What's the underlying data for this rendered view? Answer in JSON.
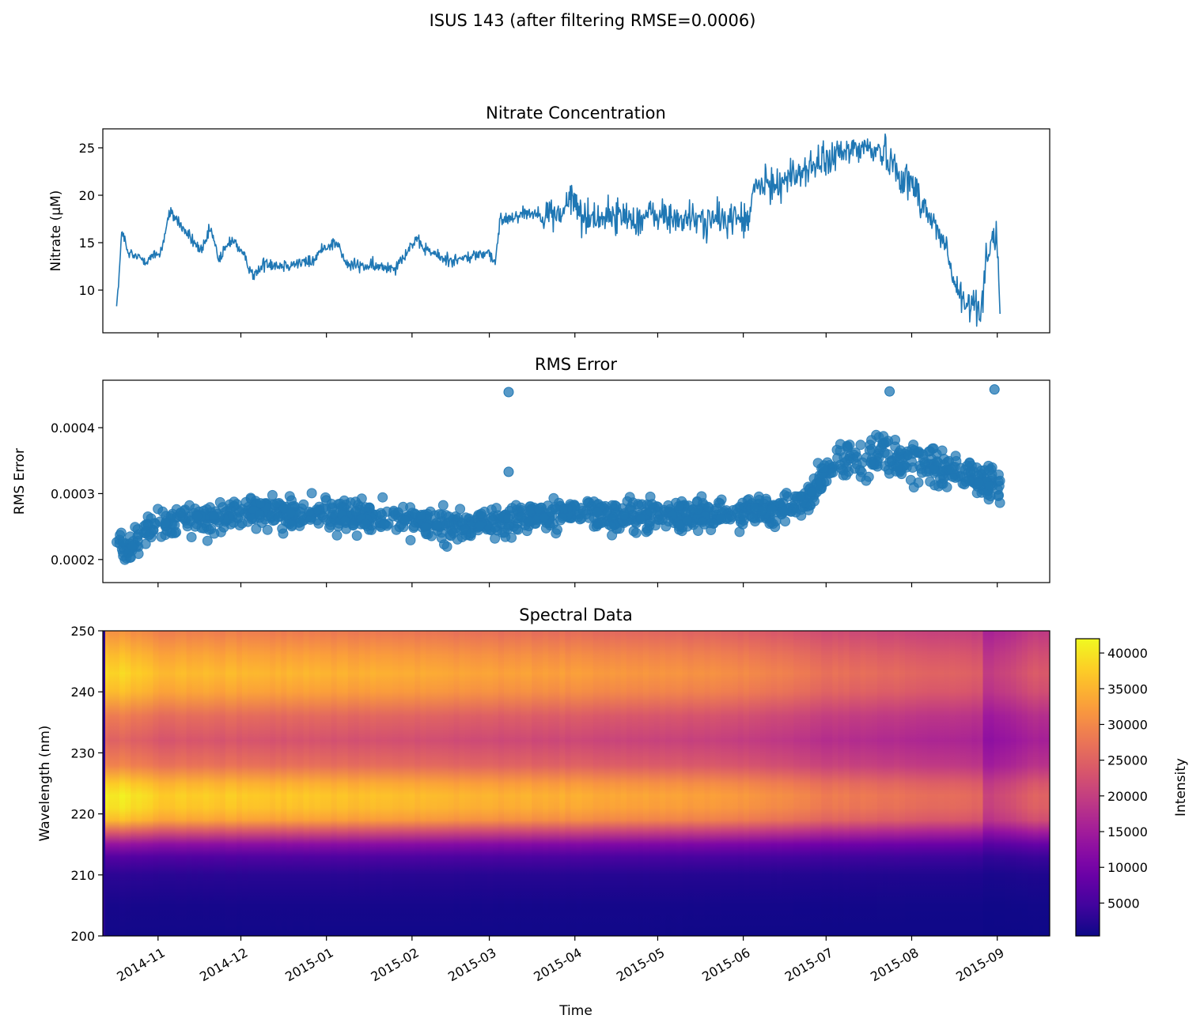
{
  "figure": {
    "suptitle": "ISUS 143 (after filtering RMSE=0.0006)",
    "shared_xlabel": "Time"
  },
  "chart_data": [
    {
      "type": "line",
      "title": "Nitrate Concentration",
      "xlabel": "",
      "ylabel": "Nitrate (µM)",
      "ylim": [
        5.5,
        27
      ],
      "yticks": [
        10,
        15,
        20,
        25
      ],
      "color": "#1f77b4",
      "series": [
        {
          "name": "",
          "x": [
            "2014-10-17",
            "2014-10-18",
            "2014-10-19",
            "2014-10-21",
            "2014-10-24",
            "2014-10-28",
            "2014-11-02",
            "2014-11-05",
            "2014-11-07",
            "2014-11-10",
            "2014-11-14",
            "2014-11-17",
            "2014-11-20",
            "2014-11-23",
            "2014-11-28",
            "2014-12-02",
            "2014-12-06",
            "2014-12-10",
            "2014-12-15",
            "2014-12-20",
            "2014-12-27",
            "2014-12-31",
            "2015-01-02",
            "2015-01-05",
            "2015-01-08",
            "2015-01-12",
            "2015-01-20",
            "2015-01-26",
            "2015-02-02",
            "2015-02-05",
            "2015-02-08",
            "2015-02-12",
            "2015-02-18",
            "2015-02-22",
            "2015-02-26",
            "2015-03-01",
            "2015-03-03",
            "2015-03-05",
            "2015-03-08",
            "2015-03-14",
            "2015-03-20",
            "2015-03-27",
            "2015-03-31",
            "2015-04-04",
            "2015-04-12",
            "2015-04-18",
            "2015-04-24",
            "2015-04-30",
            "2015-05-06",
            "2015-05-12",
            "2015-05-18",
            "2015-05-24",
            "2015-05-31",
            "2015-06-03",
            "2015-06-05",
            "2015-06-10",
            "2015-06-15",
            "2015-06-22",
            "2015-06-30",
            "2015-07-08",
            "2015-07-12",
            "2015-07-16",
            "2015-07-22",
            "2015-07-25",
            "2015-07-28",
            "2015-08-02",
            "2015-08-06",
            "2015-08-10",
            "2015-08-14",
            "2015-08-16",
            "2015-08-19",
            "2015-08-22",
            "2015-08-24",
            "2015-08-26",
            "2015-08-28",
            "2015-08-30",
            "2015-09-01",
            "2015-09-02"
          ],
          "y": [
            8.3,
            12.0,
            16.5,
            13.8,
            13.5,
            13.2,
            14.0,
            18.0,
            17.8,
            16.5,
            15.0,
            14.0,
            16.5,
            13.2,
            15.5,
            13.5,
            11.5,
            13.0,
            12.6,
            12.8,
            13.0,
            14.5,
            14.8,
            15.0,
            12.7,
            12.6,
            12.4,
            12.5,
            15.2,
            14.5,
            14.0,
            13.3,
            13.2,
            13.5,
            13.8,
            14.0,
            12.5,
            17.5,
            17.6,
            18.2,
            18.0,
            18.0,
            19.8,
            17.6,
            17.8,
            17.8,
            17.5,
            18.0,
            17.5,
            17.5,
            17.3,
            17.4,
            17.7,
            17.0,
            21.0,
            21.0,
            21.5,
            22.5,
            23.5,
            24.5,
            25.0,
            25.0,
            24.5,
            23.5,
            22.0,
            21.0,
            18.5,
            16.5,
            14.0,
            11.0,
            9.0,
            8.0,
            9.0,
            7.5,
            13.5,
            15.5,
            15.2,
            7.5
          ]
        }
      ]
    },
    {
      "type": "scatter",
      "title": "RMS Error",
      "xlabel": "",
      "ylabel": "RMS Error",
      "ylim": [
        0.000165,
        0.000472
      ],
      "yticks": [
        0.0002,
        0.0003,
        0.0004
      ],
      "ytick_labels": [
        "0.0002",
        "0.0003",
        "0.0004"
      ],
      "color": "#1f77b4",
      "series": [
        {
          "name": "",
          "x": [
            "2014-10-17",
            "2014-10-19",
            "2014-10-22",
            "2014-10-26",
            "2014-11-01",
            "2014-11-10",
            "2014-11-20",
            "2014-12-01",
            "2014-12-10",
            "2014-12-20",
            "2015-01-01",
            "2015-01-15",
            "2015-02-01",
            "2015-02-15",
            "2015-03-01",
            "2015-03-15",
            "2015-04-01",
            "2015-04-15",
            "2015-05-01",
            "2015-05-15",
            "2015-06-01",
            "2015-06-15",
            "2015-06-25",
            "2015-07-01",
            "2015-07-10",
            "2015-07-20",
            "2015-08-01",
            "2015-08-10",
            "2015-08-20",
            "2015-08-27",
            "2015-09-02"
          ],
          "y": [
            0.00024,
            0.00021,
            0.00022,
            0.00024,
            0.00025,
            0.00026,
            0.00026,
            0.00027,
            0.000275,
            0.00027,
            0.00027,
            0.000265,
            0.00026,
            0.00025,
            0.000255,
            0.000265,
            0.00027,
            0.000265,
            0.000265,
            0.00027,
            0.00027,
            0.00028,
            0.00029,
            0.00034,
            0.00035,
            0.00036,
            0.00035,
            0.00034,
            0.00033,
            0.00032,
            0.00031
          ]
        }
      ],
      "outliers": [
        {
          "x": "2015-03-08",
          "y": 0.000454
        },
        {
          "x": "2015-07-24",
          "y": 0.000455
        },
        {
          "x": "2015-08-31",
          "y": 0.000458
        },
        {
          "x": "2015-03-08",
          "y": 0.000333
        }
      ]
    },
    {
      "type": "heatmap",
      "title": "Spectral Data",
      "xlabel": "Time",
      "ylabel": "Wavelength (nm)",
      "ylim": [
        200,
        250
      ],
      "yticks": [
        200,
        210,
        220,
        230,
        240,
        250
      ],
      "colormap": "plasma",
      "colorbar": {
        "label": "Intensity",
        "range": [
          400,
          42000
        ],
        "ticks": [
          5000,
          10000,
          15000,
          20000,
          25000,
          30000,
          35000,
          40000
        ],
        "tick_labels": [
          "5000",
          "10000",
          "15000",
          "20000",
          "25000",
          "30000",
          "35000",
          "40000"
        ]
      },
      "wavelength_profile": {
        "wavelengths": [
          200,
          205,
          210,
          213,
          215,
          217,
          219,
          221,
          223,
          225,
          228,
          232,
          236,
          240,
          243,
          246,
          250
        ],
        "relative_intensity": [
          0.02,
          0.03,
          0.07,
          0.16,
          0.32,
          0.58,
          0.86,
          0.95,
          0.97,
          0.9,
          0.7,
          0.6,
          0.68,
          0.86,
          0.92,
          0.86,
          0.74
        ]
      },
      "time_amplitude": {
        "x": [
          "2014-10-13",
          "2014-10-20",
          "2014-11-01",
          "2014-12-01",
          "2015-01-01",
          "2015-02-01",
          "2015-03-01",
          "2015-04-01",
          "2015-05-01",
          "2015-06-01",
          "2015-07-01",
          "2015-08-01",
          "2015-08-26",
          "2015-08-28",
          "2015-09-15"
        ],
        "scale": [
          42000,
          42000,
          39000,
          38500,
          38000,
          37000,
          36000,
          35500,
          34500,
          33000,
          29500,
          28000,
          26500,
          21000,
          26000
        ]
      }
    }
  ],
  "xaxis": {
    "range": [
      "2014-10-12",
      "2015-09-20"
    ],
    "ticks": [
      "2014-11-01",
      "2014-12-01",
      "2015-01-01",
      "2015-02-01",
      "2015-03-01",
      "2015-04-01",
      "2015-05-01",
      "2015-06-01",
      "2015-07-01",
      "2015-08-01",
      "2015-09-01"
    ],
    "tick_labels": [
      "2014-11",
      "2014-12",
      "2015-01",
      "2015-02",
      "2015-03",
      "2015-04",
      "2015-05",
      "2015-06",
      "2015-07",
      "2015-08",
      "2015-09"
    ]
  }
}
